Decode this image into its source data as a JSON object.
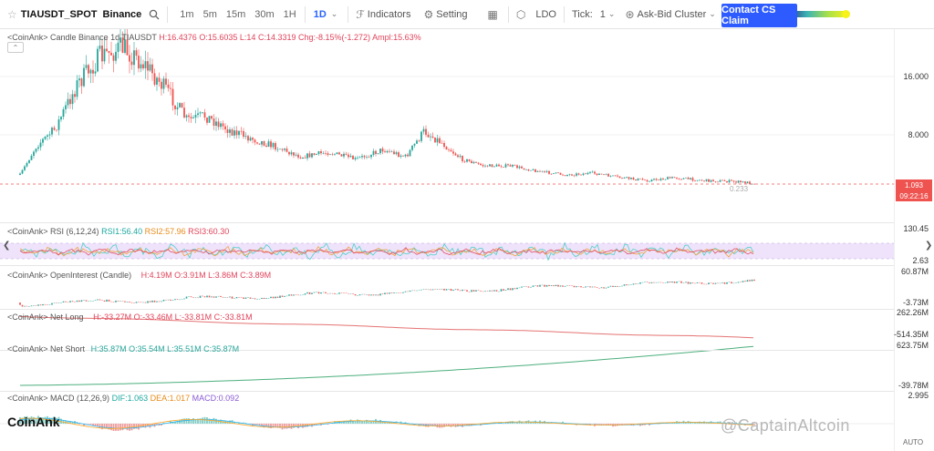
{
  "toolbar": {
    "symbol": "TIAUSDT_SPOT",
    "exchange": "Binance",
    "timeframes": [
      "1m",
      "5m",
      "15m",
      "30m",
      "1H",
      "1D"
    ],
    "active_timeframe": "1D",
    "indicators_label": "Indicators",
    "setting_label": "Setting",
    "coin": "LDO",
    "tick_label": "Tick:",
    "tick_value": "1",
    "cluster_label": "Ask-Bid Cluster",
    "cta_label": "Contact CS Claim"
  },
  "panes": {
    "candle": {
      "legend_prefix": "<CoinAnk> Candle  Binance 1d TIAUSDT",
      "h": "H:16.4376",
      "o": "O:15.6035",
      "l": "L:14",
      "c": "C:14.3319",
      "chg": "Chg:-8.15%(-1.272)",
      "ampl": "Ampl:15.63%",
      "axis": [
        "16.000",
        "8.000"
      ],
      "last_price": "1.093",
      "countdown": "09:22:16",
      "low_marker": "0.233"
    },
    "rsi": {
      "legend_prefix": "<CoinAnk> RSI  (6,12,24)",
      "rsi1": "RSI1:56.40",
      "rsi2": "RSI2:57.96",
      "rsi3": "RSI3:60.30",
      "axis": [
        "130.45",
        "2.63"
      ]
    },
    "oi": {
      "legend_prefix": "<CoinAnk> OpenInterest (Candle)",
      "values": "H:4.19M  O:3.91M  L:3.86M  C:3.89M",
      "axis": [
        "60.87M",
        "-3.73M"
      ]
    },
    "netlong": {
      "legend_prefix": "<CoinAnk> Net Long",
      "values": "H:-33.27M  O:-33.46M  L:-33.81M  C:-33.81M",
      "axis": [
        "262.26M",
        "-514.35M"
      ]
    },
    "netshort": {
      "legend_prefix": "<CoinAnk> Net Short",
      "values": "H:35.87M  O:35.54M  L:35.51M  C:35.87M",
      "axis": [
        "623.75M",
        "-39.78M"
      ]
    },
    "macd": {
      "legend_prefix": "<CoinAnk> MACD  (12,26,9)",
      "dif": "DIF:1.063",
      "dea": "DEA:1.017",
      "macd": "MACD:0.092",
      "axis": [
        "2.995"
      ]
    }
  },
  "watermark_left": "CoinAnk",
  "watermark_right": "@CaptainAltcoin",
  "auto_label": "AUTO",
  "colors": {
    "accent": "#2962ff",
    "cta": "#2d5bff",
    "up": "#26a69a",
    "down": "#ef5350",
    "rsi_band": "#efe3fb"
  }
}
